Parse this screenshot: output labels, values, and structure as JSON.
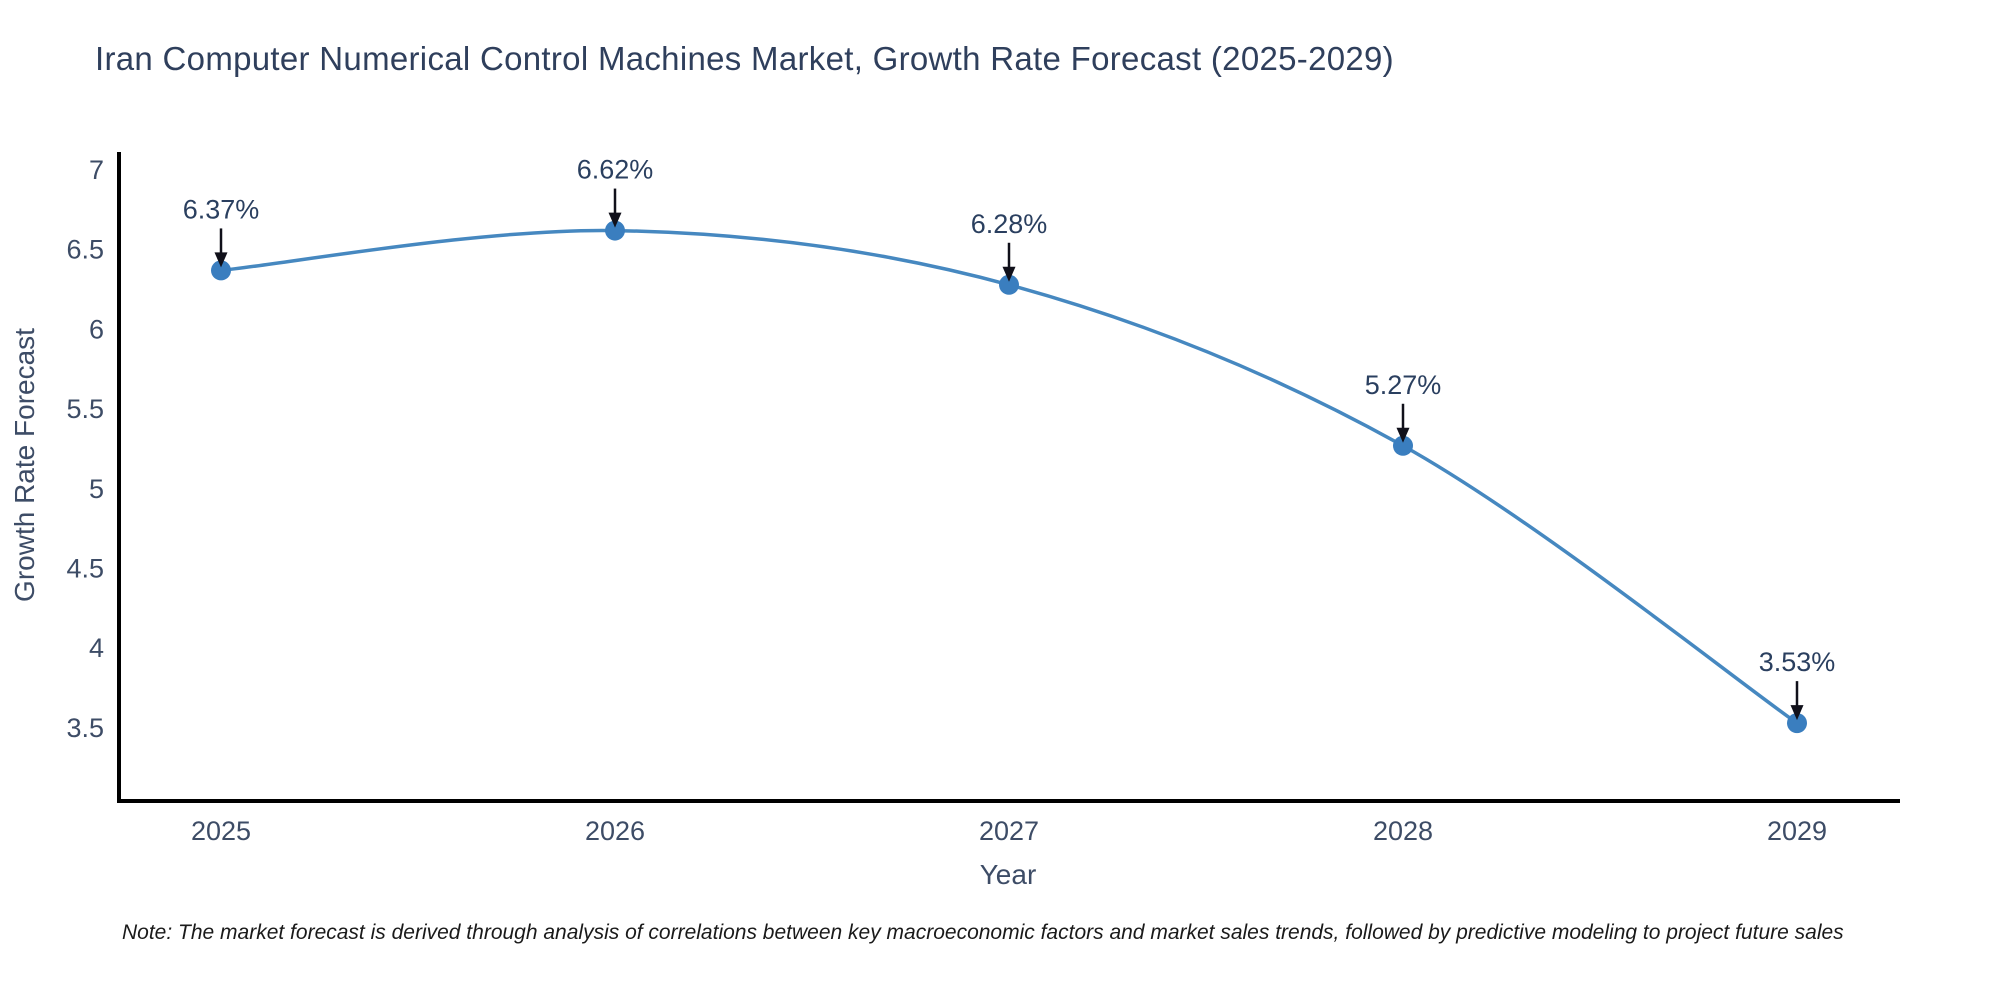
{
  "title": "Iran Computer Numerical Control Machines Market, Growth Rate Forecast (2025-2029)",
  "note": "Note: The market forecast is derived through analysis of correlations between key macroeconomic factors and market sales trends, followed by predictive modeling to project future sales",
  "chart_data": {
    "type": "line",
    "line_shape": "spline",
    "title": "Iran Computer Numerical Control Machines Market, Growth Rate Forecast (2025-2029)",
    "xlabel": "Year",
    "ylabel": "Growth Rate Forecast",
    "x": [
      2025,
      2026,
      2027,
      2028,
      2029
    ],
    "values": [
      6.37,
      6.62,
      6.28,
      5.27,
      3.53
    ],
    "point_labels": [
      "6.37%",
      "6.62%",
      "6.28%",
      "5.27%",
      "3.53%"
    ],
    "yticks": [
      7,
      6.5,
      6,
      5.5,
      5,
      4.5,
      4,
      3.5
    ],
    "xticks": [
      "2025",
      "2026",
      "2027",
      "2028",
      "2029"
    ],
    "ylim": [
      3.05,
      7.09
    ],
    "xlim": [
      2024.73,
      2029.27
    ],
    "grid": false,
    "legend": "none",
    "annotations_have_arrows": true,
    "colors": {
      "line": "#4688c0",
      "marker": "#3a7ebf",
      "axis_line": "#000000",
      "tick_text": "#3d4c66",
      "axis_title_text": "#3d4c66",
      "title_text": "#2f3f5c",
      "annotation_text": "#2a3f5f",
      "arrow": "#10101a",
      "background": "#ffffff"
    }
  }
}
